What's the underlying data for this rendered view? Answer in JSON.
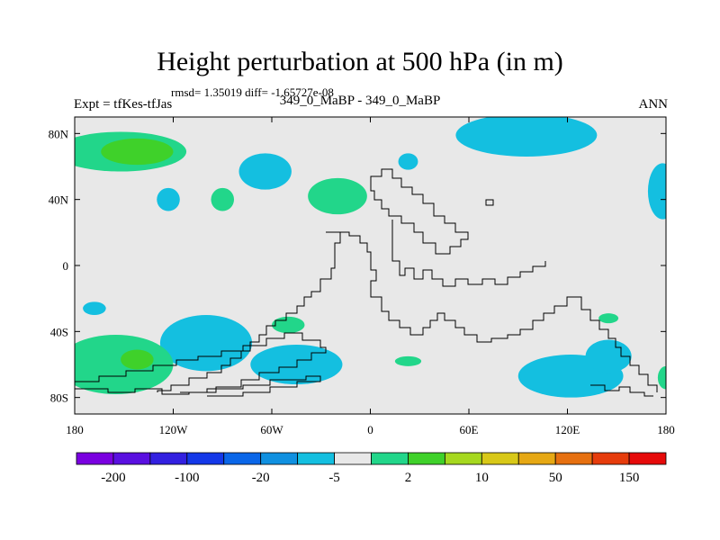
{
  "title": "Height perturbation at 500 hPa (in m)",
  "stats": "rmsd= 1.35019 diff= -1.65727e-08",
  "left_string": "Expt = tfKes-tfJas",
  "center_string": "349_0_MaBP - 349_0_MaBP",
  "right_string": "ANN",
  "map": {
    "lon_range": [
      -180,
      180
    ],
    "lat_range": [
      -90,
      90
    ],
    "background_color": "#e8e8e8",
    "x_ticks": [
      {
        "value": -180,
        "label": "180"
      },
      {
        "value": -120,
        "label": "120W"
      },
      {
        "value": -60,
        "label": "60W"
      },
      {
        "value": 0,
        "label": "0"
      },
      {
        "value": 60,
        "label": "60E"
      },
      {
        "value": 120,
        "label": "120E"
      },
      {
        "value": 180,
        "label": "180"
      }
    ],
    "y_ticks": [
      {
        "value": 80,
        "label": "80N"
      },
      {
        "value": 40,
        "label": "40N"
      },
      {
        "value": 0,
        "label": "0"
      },
      {
        "value": -40,
        "label": "40S"
      },
      {
        "value": -80,
        "label": "80S"
      }
    ],
    "blobs": [
      {
        "name": "nw-pacific-positive",
        "lon": -152,
        "lat": 69,
        "rx": 40,
        "ry": 12,
        "color": "#22d68a"
      },
      {
        "name": "nw-pacific-positive-core",
        "lon": -142,
        "lat": 69,
        "rx": 22,
        "ry": 8,
        "color": "#3fd12a"
      },
      {
        "name": "n-america-negative",
        "lon": -64,
        "lat": 57,
        "rx": 16,
        "ry": 11,
        "color": "#14bfe0"
      },
      {
        "name": "n-pacific-positive-small",
        "lon": -90,
        "lat": 40,
        "rx": 7,
        "ry": 7,
        "color": "#22d68a"
      },
      {
        "name": "n-pacific-negative-small",
        "lon": -123,
        "lat": 40,
        "rx": 7,
        "ry": 7,
        "color": "#14bfe0"
      },
      {
        "name": "atlantic-positive",
        "lon": -20,
        "lat": 42,
        "rx": 18,
        "ry": 11,
        "color": "#22d68a"
      },
      {
        "name": "n-europe-negative-small",
        "lon": 23,
        "lat": 63,
        "rx": 6,
        "ry": 5,
        "color": "#14bfe0"
      },
      {
        "name": "siberia-negative",
        "lon": 95,
        "lat": 79,
        "rx": 43,
        "ry": 13,
        "color": "#14bfe0"
      },
      {
        "name": "ne-pacific-negative",
        "lon": 178,
        "lat": 45,
        "rx": 9,
        "ry": 17,
        "color": "#14bfe0"
      },
      {
        "name": "s-pacific-negative-small",
        "lon": -168,
        "lat": -26,
        "rx": 7,
        "ry": 4,
        "color": "#14bfe0"
      },
      {
        "name": "s-pacific-negative",
        "lon": -100,
        "lat": -47,
        "rx": 28,
        "ry": 17,
        "color": "#14bfe0"
      },
      {
        "name": "s-atlantic-negative",
        "lon": -45,
        "lat": -60,
        "rx": 28,
        "ry": 12,
        "color": "#14bfe0"
      },
      {
        "name": "s-atlantic-positive-small",
        "lon": -50,
        "lat": -36,
        "rx": 10,
        "ry": 5,
        "color": "#22d68a"
      },
      {
        "name": "s-pacific-positive",
        "lon": -155,
        "lat": -60,
        "rx": 35,
        "ry": 18,
        "color": "#22d68a"
      },
      {
        "name": "s-pacific-positive-core",
        "lon": -142,
        "lat": -57,
        "rx": 10,
        "ry": 6,
        "color": "#3fd12a"
      },
      {
        "name": "s-indian-positive-small",
        "lon": 23,
        "lat": -58,
        "rx": 8,
        "ry": 3,
        "color": "#22d68a"
      },
      {
        "name": "s-indian-negative",
        "lon": 122,
        "lat": -67,
        "rx": 32,
        "ry": 13,
        "color": "#14bfe0"
      },
      {
        "name": "s-indian-negative-extension",
        "lon": 145,
        "lat": -55,
        "rx": 14,
        "ry": 10,
        "color": "#14bfe0"
      },
      {
        "name": "australia-positive-small",
        "lon": 145,
        "lat": -32,
        "rx": 6,
        "ry": 3,
        "color": "#22d68a"
      },
      {
        "name": "s-pacific-east-positive",
        "lon": 180,
        "lat": -68,
        "rx": 5,
        "ry": 7,
        "color": "#22d68a"
      }
    ]
  },
  "colorbar": {
    "colors": [
      "#7a00e0",
      "#5a10e0",
      "#3320e0",
      "#1438e8",
      "#0a66e8",
      "#1090e0",
      "#14bfe0",
      "#e8e8e8",
      "#22d68a",
      "#3fd12a",
      "#a6d81f",
      "#d8c818",
      "#e6a814",
      "#e67010",
      "#e63c0c",
      "#e60a0a"
    ],
    "labels": [
      {
        "after_box": 1,
        "text": "-200"
      },
      {
        "after_box": 3,
        "text": "-100"
      },
      {
        "after_box": 5,
        "text": "-20"
      },
      {
        "after_box": 7,
        "text": "-5"
      },
      {
        "after_box": 9,
        "text": "2"
      },
      {
        "after_box": 11,
        "text": "10"
      },
      {
        "after_box": 13,
        "text": "50"
      },
      {
        "after_box": 15,
        "text": "150"
      }
    ]
  }
}
